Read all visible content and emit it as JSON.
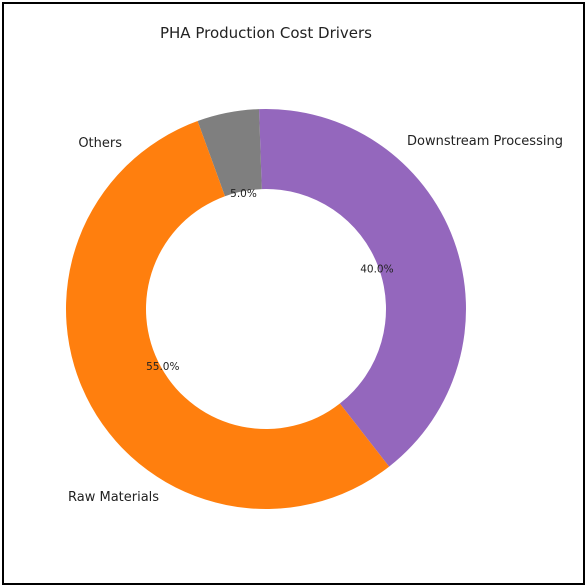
{
  "chart_data": {
    "type": "pie",
    "variant": "donut",
    "title": "PHA Production Cost Drivers",
    "categories": [
      "Raw Materials",
      "Downstream Processing",
      "Others"
    ],
    "values": [
      55.0,
      40.0,
      5.0
    ],
    "labels": [
      "55.0%",
      "40.0%",
      "5.0%"
    ],
    "colors": [
      "#ff7f0e",
      "#9467bd",
      "#7f7f7f"
    ],
    "legend": "none"
  }
}
